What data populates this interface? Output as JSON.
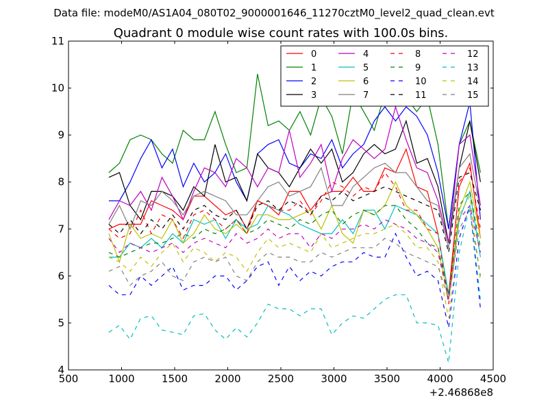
{
  "figure": {
    "suptitle": "Data file: modeM0/AS1A04_080T02_9000001646_11270cztM0_level2_quad_clean.evt"
  },
  "chart_data": {
    "type": "line",
    "title": "Quadrant 0 module wise count rates with 100.0s bins.",
    "xlabel": "",
    "ylabel": "",
    "xlim": [
      500,
      4500
    ],
    "ylim": [
      4,
      11
    ],
    "x_offset_label": "+2.46868e8",
    "xticks": [
      500,
      1000,
      1500,
      2000,
      2500,
      3000,
      3500,
      4000,
      4500
    ],
    "yticks": [
      4,
      5,
      6,
      7,
      8,
      9,
      10,
      11
    ],
    "legend_position": "top-right",
    "legend_columns": 4,
    "x": [
      880,
      980,
      1080,
      1180,
      1280,
      1380,
      1480,
      1580,
      1680,
      1780,
      1880,
      1980,
      2080,
      2180,
      2280,
      2380,
      2480,
      2580,
      2680,
      2780,
      2880,
      2980,
      3080,
      3180,
      3280,
      3380,
      3480,
      3580,
      3680,
      3780,
      3880,
      3980,
      4080,
      4180,
      4280,
      4380
    ],
    "series": [
      {
        "name": "0",
        "color": "#ff0000",
        "dash": "solid",
        "values": [
          7.0,
          7.1,
          7.1,
          7.1,
          7.6,
          7.5,
          7.4,
          7.2,
          7.7,
          7.7,
          7.5,
          7.3,
          7.4,
          7.0,
          7.6,
          7.5,
          7.3,
          7.8,
          7.8,
          7.4,
          7.7,
          7.8,
          7.8,
          8.1,
          7.8,
          7.8,
          8.3,
          8.2,
          8.7,
          7.9,
          7.8,
          6.9,
          5.6,
          7.9,
          8.4,
          6.8
        ]
      },
      {
        "name": "1",
        "color": "#008000",
        "dash": "solid",
        "values": [
          8.2,
          8.4,
          8.9,
          9.0,
          8.9,
          8.6,
          8.4,
          9.1,
          8.9,
          8.9,
          9.5,
          8.8,
          8.2,
          8.3,
          10.3,
          9.2,
          9.3,
          9.1,
          9.5,
          9.0,
          9.8,
          9.4,
          8.6,
          9.9,
          9.5,
          9.1,
          9.9,
          9.6,
          9.8,
          9.5,
          9.8,
          8.8,
          7.0,
          8.8,
          9.3,
          8.2
        ]
      },
      {
        "name": "2",
        "color": "#0000ff",
        "dash": "solid",
        "values": [
          7.6,
          7.6,
          8.0,
          8.5,
          8.9,
          8.3,
          8.7,
          7.9,
          8.4,
          8.0,
          8.2,
          8.6,
          8.0,
          7.6,
          8.6,
          8.8,
          8.9,
          8.4,
          8.3,
          8.6,
          8.5,
          8.9,
          8.3,
          8.6,
          8.8,
          9.3,
          9.6,
          9.3,
          9.6,
          9.4,
          9.0,
          8.2,
          7.0,
          8.8,
          9.7,
          7.2
        ]
      },
      {
        "name": "3",
        "color": "#000000",
        "dash": "solid",
        "values": [
          8.1,
          8.2,
          7.5,
          7.2,
          7.8,
          7.8,
          7.7,
          7.4,
          7.9,
          7.7,
          8.8,
          8.0,
          8.1,
          7.6,
          8.6,
          8.3,
          8.2,
          7.9,
          8.3,
          8.7,
          8.4,
          8.7,
          8.0,
          8.2,
          8.6,
          8.8,
          8.6,
          8.7,
          9.3,
          8.4,
          8.5,
          7.9,
          6.7,
          8.3,
          9.3,
          8.0
        ]
      },
      {
        "name": "4",
        "color": "#bf00bf",
        "dash": "solid",
        "values": [
          7.2,
          7.6,
          7.5,
          7.8,
          7.4,
          8.1,
          7.7,
          7.2,
          7.8,
          8.3,
          8.2,
          7.9,
          8.5,
          8.3,
          7.9,
          8.3,
          8.2,
          9.1,
          8.1,
          8.4,
          8.8,
          7.8,
          8.5,
          8.9,
          8.7,
          8.5,
          8.7,
          9.6,
          8.9,
          8.3,
          8.2,
          7.6,
          6.7,
          8.8,
          9.0,
          7.5
        ]
      },
      {
        "name": "5",
        "color": "#00bfbf",
        "dash": "solid",
        "values": [
          6.4,
          6.4,
          6.7,
          6.6,
          6.8,
          6.6,
          6.9,
          6.7,
          7.2,
          7.1,
          7.2,
          6.8,
          7.2,
          7.0,
          7.1,
          7.5,
          7.4,
          7.3,
          7.1,
          7.0,
          6.9,
          6.9,
          7.2,
          6.9,
          7.4,
          7.4,
          7.0,
          7.5,
          7.4,
          7.3,
          7.1,
          6.9,
          5.6,
          7.2,
          7.8,
          6.4
        ]
      },
      {
        "name": "6",
        "color": "#bfbf00",
        "dash": "solid",
        "values": [
          6.9,
          6.3,
          7.1,
          6.8,
          6.9,
          6.8,
          7.2,
          6.7,
          6.9,
          7.3,
          7.0,
          6.9,
          7.1,
          6.9,
          7.3,
          7.3,
          7.2,
          7.2,
          7.3,
          7.4,
          7.0,
          7.5,
          6.9,
          6.7,
          7.4,
          7.3,
          7.5,
          8.0,
          7.5,
          7.3,
          7.0,
          6.6,
          5.5,
          7.4,
          8.0,
          6.8
        ]
      },
      {
        "name": "7",
        "color": "#7f7f7f",
        "dash": "solid",
        "values": [
          7.1,
          7.5,
          7.0,
          7.6,
          7.5,
          7.8,
          7.6,
          7.3,
          7.7,
          7.8,
          7.7,
          7.6,
          7.3,
          7.3,
          7.6,
          7.9,
          8.0,
          7.7,
          7.8,
          7.9,
          8.3,
          7.5,
          7.5,
          7.9,
          8.1,
          8.3,
          8.4,
          8.2,
          8.2,
          7.9,
          7.6,
          7.5,
          6.6,
          8.3,
          8.6,
          7.4
        ]
      },
      {
        "name": "8",
        "color": "#ff0000",
        "dash": "dashed",
        "values": [
          7.0,
          6.8,
          6.9,
          7.4,
          6.9,
          7.3,
          7.2,
          6.8,
          7.3,
          7.4,
          7.2,
          7.0,
          7.2,
          6.9,
          7.6,
          7.5,
          7.4,
          7.4,
          7.6,
          7.3,
          7.6,
          8.0,
          7.9,
          7.7,
          7.9,
          7.8,
          8.2,
          7.9,
          7.4,
          7.4,
          7.0,
          6.9,
          5.4,
          8.0,
          8.3,
          7.0
        ]
      },
      {
        "name": "9",
        "color": "#008000",
        "dash": "dashed",
        "values": [
          6.5,
          6.4,
          6.5,
          6.6,
          6.7,
          6.7,
          6.8,
          6.9,
          6.8,
          7.0,
          6.9,
          7.0,
          7.2,
          6.9,
          7.0,
          7.2,
          7.1,
          7.0,
          7.2,
          7.1,
          7.3,
          7.4,
          7.1,
          7.3,
          7.4,
          7.3,
          7.5,
          7.5,
          7.2,
          7.0,
          6.7,
          6.6,
          5.6,
          7.5,
          7.8,
          6.6
        ]
      },
      {
        "name": "10",
        "color": "#0000ff",
        "dash": "dashed",
        "values": [
          5.8,
          5.6,
          5.6,
          6.0,
          5.8,
          6.0,
          6.2,
          5.7,
          5.8,
          5.8,
          6.0,
          6.0,
          5.7,
          5.9,
          6.2,
          6.3,
          5.8,
          6.2,
          5.9,
          6.1,
          6.0,
          6.2,
          6.3,
          6.3,
          6.5,
          6.4,
          6.4,
          6.9,
          6.4,
          6.0,
          6.1,
          5.9,
          4.9,
          6.8,
          7.5,
          5.3
        ]
      },
      {
        "name": "11",
        "color": "#000000",
        "dash": "dashed",
        "values": [
          7.1,
          6.9,
          7.2,
          6.9,
          7.2,
          7.0,
          7.3,
          7.0,
          7.4,
          7.5,
          7.3,
          7.2,
          7.4,
          7.0,
          7.5,
          7.6,
          7.4,
          7.6,
          7.5,
          7.3,
          7.7,
          7.6,
          7.8,
          7.6,
          7.7,
          7.8,
          7.9,
          7.8,
          7.7,
          7.6,
          7.5,
          7.4,
          6.5,
          8.1,
          8.2,
          7.4
        ]
      },
      {
        "name": "12",
        "color": "#bf00bf",
        "dash": "dashed",
        "values": [
          6.8,
          6.5,
          6.7,
          6.6,
          6.5,
          6.6,
          6.7,
          6.5,
          6.7,
          6.8,
          6.7,
          6.6,
          6.9,
          6.7,
          6.8,
          7.0,
          6.8,
          6.9,
          6.9,
          6.6,
          6.9,
          6.8,
          7.0,
          7.0,
          7.1,
          7.0,
          7.2,
          7.1,
          7.0,
          6.8,
          6.7,
          6.5,
          5.5,
          7.2,
          7.5,
          6.5
        ]
      },
      {
        "name": "13",
        "color": "#00bfbf",
        "dash": "dashed",
        "values": [
          4.8,
          4.95,
          4.65,
          5.1,
          5.15,
          4.85,
          4.8,
          4.75,
          5.15,
          5.2,
          4.85,
          4.65,
          4.9,
          4.7,
          5.0,
          5.4,
          5.3,
          5.3,
          5.15,
          5.3,
          5.3,
          4.75,
          5.0,
          5.15,
          5.1,
          5.3,
          5.5,
          5.6,
          5.6,
          5.0,
          5.0,
          4.95,
          4.15,
          6.5,
          7.5,
          5.5
        ]
      },
      {
        "name": "14",
        "color": "#bfbf00",
        "dash": "dashed",
        "values": [
          6.4,
          6.3,
          6.1,
          6.4,
          6.2,
          6.5,
          6.7,
          6.3,
          6.6,
          6.5,
          6.3,
          6.5,
          6.4,
          6.1,
          6.5,
          6.8,
          6.6,
          6.7,
          6.6,
          6.5,
          6.9,
          6.6,
          6.7,
          6.8,
          6.9,
          6.9,
          7.0,
          7.1,
          6.9,
          6.6,
          6.6,
          6.3,
          5.1,
          7.3,
          7.7,
          5.9
        ]
      },
      {
        "name": "15",
        "color": "#7f7f7f",
        "dash": "dashed",
        "values": [
          6.1,
          6.2,
          5.8,
          6.0,
          6.1,
          6.3,
          6.0,
          5.9,
          6.3,
          6.4,
          6.3,
          6.4,
          6.0,
          5.9,
          6.3,
          6.5,
          6.4,
          6.4,
          6.3,
          6.3,
          6.5,
          6.4,
          6.5,
          6.6,
          6.6,
          6.6,
          6.8,
          6.7,
          6.5,
          6.4,
          6.3,
          6.2,
          5.5,
          7.0,
          7.4,
          6.0
        ]
      }
    ]
  }
}
